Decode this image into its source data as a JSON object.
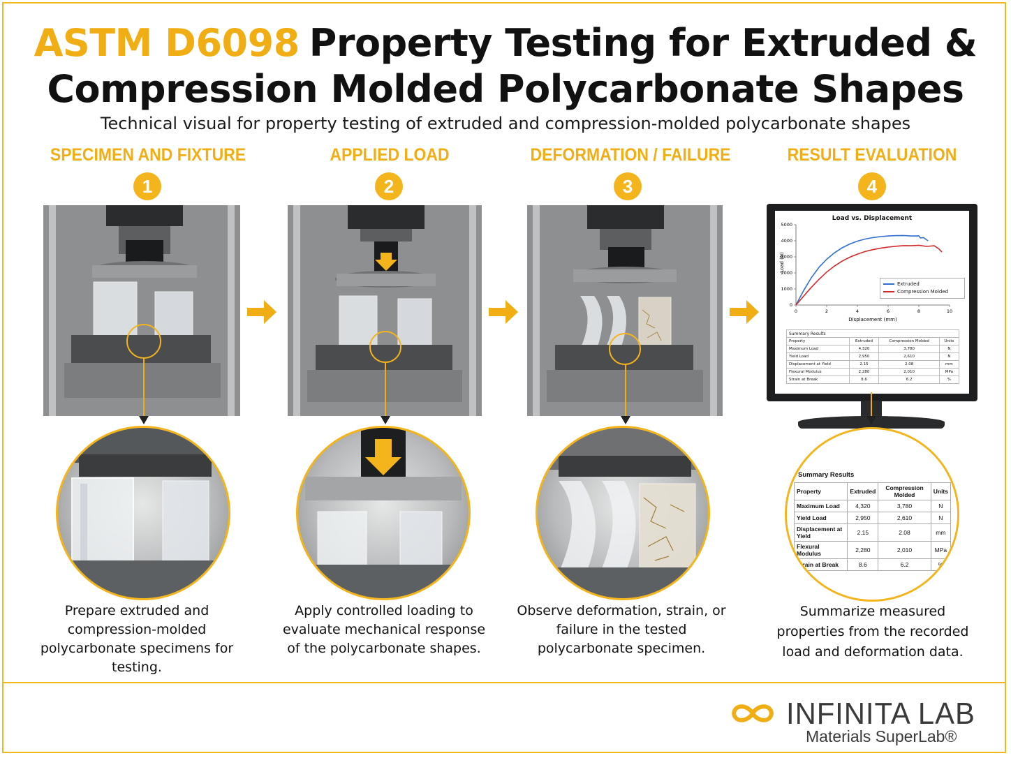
{
  "header": {
    "title_accent": "ASTM D6098",
    "title_line1": "Property Testing for Extruded &",
    "title_line2": "Compression Molded Polycarbonate Shapes",
    "subtitle": "Technical visual for property testing of extruded and compression-molded polycarbonate shapes"
  },
  "steps": [
    {
      "number": "1",
      "heading": "SPECIMEN AND FIXTURE",
      "description": "Prepare extruded and compression-molded polycarbonate specimens for testing."
    },
    {
      "number": "2",
      "heading": "APPLIED LOAD",
      "description": "Apply controlled loading to evaluate mechanical response of the polycarbonate shapes."
    },
    {
      "number": "3",
      "heading": "DEFORMATION / FAILURE",
      "description": "Observe deformation, strain, or failure in the tested polycarbonate specimen."
    },
    {
      "number": "4",
      "heading": "RESULT EVALUATION",
      "description": "Summarize measured properties from the recorded load and deformation data."
    }
  ],
  "chart_data": {
    "type": "line",
    "title": "Load vs. Displacement",
    "xlabel": "Displacement (mm)",
    "ylabel": "Load (N)",
    "xlim": [
      0,
      10
    ],
    "ylim": [
      0,
      5000
    ],
    "xticks": [
      0,
      2,
      4,
      6,
      8,
      10
    ],
    "yticks": [
      0,
      1000,
      2000,
      3000,
      4000,
      5000
    ],
    "legend_position": "right",
    "series": [
      {
        "name": "Extruded",
        "color": "#2f6fd0",
        "x": [
          0,
          0.5,
          1,
          1.5,
          2,
          2.5,
          3,
          3.5,
          4,
          4.5,
          5,
          5.5,
          6,
          6.5,
          7,
          7.5,
          8,
          8.1,
          8.3,
          8.6
        ],
        "y": [
          0,
          900,
          1700,
          2350,
          2850,
          3250,
          3560,
          3800,
          3980,
          4110,
          4200,
          4260,
          4300,
          4320,
          4330,
          4300,
          4310,
          4180,
          4200,
          4000
        ]
      },
      {
        "name": "Compression Molded",
        "color": "#d02a2a",
        "x": [
          0,
          0.5,
          1,
          1.5,
          2,
          2.5,
          3,
          3.5,
          4,
          4.5,
          5,
          5.5,
          6,
          6.5,
          7,
          7.5,
          8,
          8.5,
          9,
          9.3,
          9.5
        ],
        "y": [
          0,
          550,
          1100,
          1600,
          2050,
          2420,
          2730,
          2980,
          3170,
          3330,
          3450,
          3540,
          3610,
          3660,
          3700,
          3690,
          3720,
          3650,
          3690,
          3500,
          3300
        ]
      }
    ]
  },
  "summary_table": {
    "caption": "Summary Results",
    "headers": [
      "Property",
      "Extruded",
      "Compression Molded",
      "Units"
    ],
    "rows": [
      [
        "Maximum Load",
        "4,320",
        "3,780",
        "N"
      ],
      [
        "Yield Load",
        "2,950",
        "2,610",
        "N"
      ],
      [
        "Displacement at Yield",
        "2.15",
        "2.08",
        "mm"
      ],
      [
        "Flexural Modulus",
        "2,280",
        "2,010",
        "MPa"
      ],
      [
        "Strain at Break",
        "8.6",
        "6.2",
        "%"
      ]
    ]
  },
  "brand": {
    "name": "INFINITA LAB",
    "tagline": "Materials SuperLab®",
    "accent_color": "#f0ae14"
  }
}
